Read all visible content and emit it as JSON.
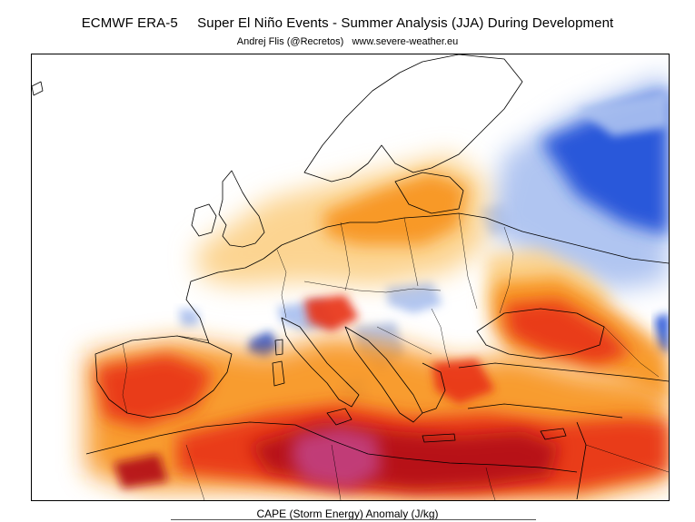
{
  "header": {
    "title_left": "ECMWF ERA-5",
    "title_right": "Super El Niño Events - Summer Analysis (JJA) During Development",
    "subtitle": "Andrej Flis (@Recretos)   www.severe-weather.eu"
  },
  "map": {
    "variable_label": "CAPE (Storm Energy) Anomaly (J/kg)",
    "region": "Europe and Mediterranean",
    "colors": {
      "negative_strong": "#1e4fd8",
      "negative_light": "#a9c0f0",
      "neutral": "#ffffff",
      "positive_light": "#fcd088",
      "positive_medium": "#f7941d",
      "positive_strong": "#e8351a",
      "positive_very_strong": "#b30f14",
      "positive_extreme": "#c2407f",
      "borders": "#000000"
    }
  }
}
